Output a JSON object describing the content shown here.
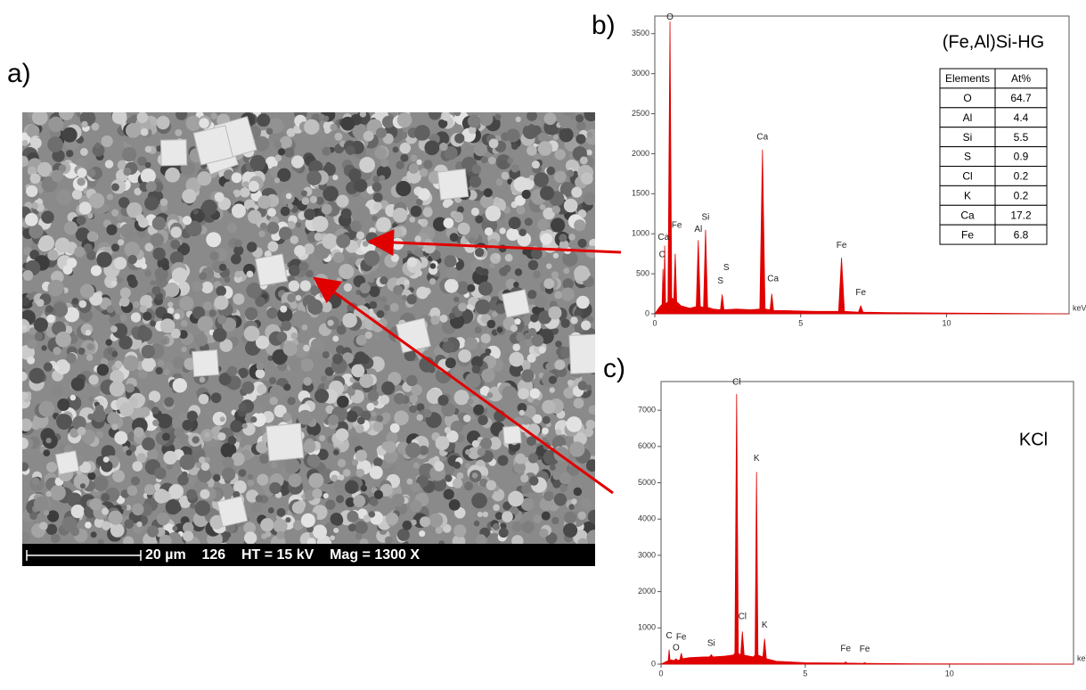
{
  "panels": {
    "a": "a)",
    "b": "b)",
    "c": "c)"
  },
  "sem": {
    "scale_bar": "20 µm    126    HT = 15 kV    Mag = 1300 X"
  },
  "table": {
    "title": "(Fe,Al)Si-HG",
    "header": [
      "Elements",
      "At%"
    ],
    "rows": [
      [
        "O",
        "64.7"
      ],
      [
        "Al",
        "4.4"
      ],
      [
        "Si",
        "5.5"
      ],
      [
        "S",
        "0.9"
      ],
      [
        "Cl",
        "0.2"
      ],
      [
        "K",
        "0.2"
      ],
      [
        "Ca",
        "17.2"
      ],
      [
        "Fe",
        "6.8"
      ]
    ]
  },
  "chart_data": [
    {
      "type": "area",
      "color": "#e00000",
      "xlabel": "keV",
      "xlim": [
        0,
        14.2
      ],
      "ylim": [
        0,
        3720
      ],
      "xticks": [
        0,
        5,
        10
      ],
      "yticks": [
        0,
        500,
        1000,
        1500,
        2000,
        2500,
        3000,
        3500
      ],
      "x": [
        0,
        0.15,
        0.25,
        0.28,
        0.31,
        0.34,
        0.37,
        0.45,
        0.52,
        0.58,
        0.65,
        0.7,
        0.75,
        0.9,
        1.2,
        1.42,
        1.49,
        1.56,
        1.67,
        1.74,
        1.81,
        2.0,
        2.25,
        2.31,
        2.37,
        2.8,
        3.3,
        3.6,
        3.69,
        3.78,
        3.95,
        4.01,
        4.07,
        4.5,
        5.5,
        6.3,
        6.4,
        6.5,
        6.98,
        7.06,
        7.14,
        8,
        10,
        12,
        14.2
      ],
      "values": [
        0,
        80,
        120,
        560,
        150,
        850,
        120,
        150,
        3650,
        200,
        180,
        750,
        150,
        100,
        70,
        90,
        920,
        90,
        80,
        1050,
        80,
        60,
        50,
        240,
        50,
        60,
        50,
        60,
        2050,
        60,
        50,
        250,
        40,
        40,
        30,
        30,
        700,
        30,
        20,
        100,
        20,
        15,
        10,
        5,
        0
      ],
      "annotations": [
        {
          "text": "O",
          "x": 0.52,
          "y": 3650
        },
        {
          "text": "Ca",
          "x": 0.3,
          "y": 900
        },
        {
          "text": "C",
          "x": 0.25,
          "y": 680
        },
        {
          "text": "Fe",
          "x": 0.75,
          "y": 1050
        },
        {
          "text": "Al",
          "x": 1.49,
          "y": 1000
        },
        {
          "text": "Si",
          "x": 1.74,
          "y": 1150
        },
        {
          "text": "S",
          "x": 2.45,
          "y": 520
        },
        {
          "text": "S",
          "x": 2.25,
          "y": 350
        },
        {
          "text": "Ca",
          "x": 3.69,
          "y": 2150
        },
        {
          "text": "Ca",
          "x": 4.05,
          "y": 380
        },
        {
          "text": "Fe",
          "x": 6.4,
          "y": 800
        },
        {
          "text": "Fe",
          "x": 7.06,
          "y": 210
        }
      ]
    },
    {
      "type": "area",
      "color": "#e00000",
      "xlabel": "keV",
      "label": "KCl",
      "xlim": [
        0,
        14.3
      ],
      "ylim": [
        0,
        7790
      ],
      "xticks": [
        0,
        5,
        10
      ],
      "yticks": [
        0,
        1000,
        2000,
        3000,
        4000,
        5000,
        6000,
        7000
      ],
      "x": [
        0,
        0.15,
        0.25,
        0.28,
        0.31,
        0.45,
        0.52,
        0.58,
        0.65,
        0.7,
        0.75,
        1.0,
        1.5,
        1.68,
        1.74,
        1.8,
        2.2,
        2.5,
        2.56,
        2.62,
        2.68,
        2.76,
        2.82,
        2.88,
        3.2,
        3.26,
        3.31,
        3.36,
        3.53,
        3.59,
        3.65,
        4.0,
        5,
        6.35,
        6.4,
        6.45,
        7.0,
        7.06,
        7.12,
        9,
        12,
        14.3
      ],
      "values": [
        0,
        60,
        100,
        400,
        120,
        100,
        150,
        100,
        120,
        300,
        150,
        180,
        200,
        200,
        260,
        200,
        220,
        250,
        300,
        7450,
        300,
        250,
        900,
        250,
        200,
        250,
        5300,
        250,
        200,
        700,
        150,
        80,
        40,
        30,
        60,
        30,
        20,
        40,
        20,
        10,
        5,
        0
      ],
      "annotations": [
        {
          "text": "C",
          "x": 0.28,
          "y": 660
        },
        {
          "text": "Fe",
          "x": 0.7,
          "y": 620
        },
        {
          "text": "O",
          "x": 0.52,
          "y": 320
        },
        {
          "text": "Si",
          "x": 1.74,
          "y": 450
        },
        {
          "text": "Cl",
          "x": 2.62,
          "y": 7650
        },
        {
          "text": "Cl",
          "x": 2.82,
          "y": 1180
        },
        {
          "text": "K",
          "x": 3.31,
          "y": 5550
        },
        {
          "text": "K",
          "x": 3.59,
          "y": 950
        },
        {
          "text": "Fe",
          "x": 6.4,
          "y": 300
        },
        {
          "text": "Fe",
          "x": 7.06,
          "y": 280
        }
      ]
    }
  ]
}
